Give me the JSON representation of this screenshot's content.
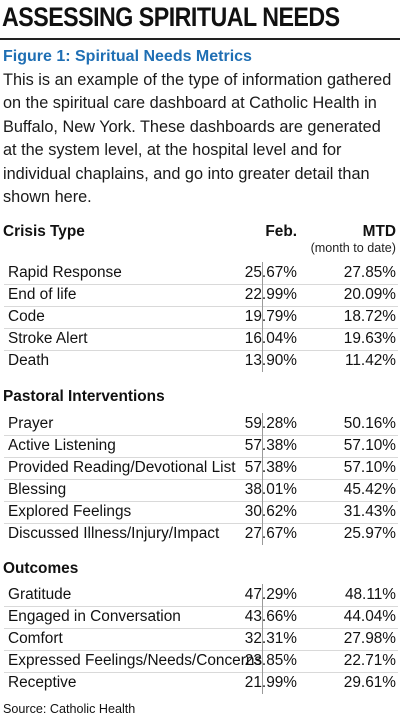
{
  "heading": "ASSESSING SPIRITUAL NEEDS",
  "figure_title": "Figure 1: Spiritual Needs Metrics",
  "description": "This is an example of the type of information gathered on the spiritual care dashboard at Catholic Health in Buffalo, New York. These dashboards are generated at the system level, at the hospital level and for individual chaplains, and go into greater detail than shown here.",
  "table": {
    "col_feb": "Feb.",
    "col_mtd": "MTD",
    "col_mtd_note": "(month to date)",
    "sections": [
      {
        "title": "Crisis Type",
        "rows": [
          {
            "label": "Rapid Response",
            "feb": "25.67%",
            "mtd": "27.85%"
          },
          {
            "label": "End of life",
            "feb": "22.99%",
            "mtd": "20.09%"
          },
          {
            "label": "Code",
            "feb": "19.79%",
            "mtd": "18.72%"
          },
          {
            "label": "Stroke Alert",
            "feb": "16.04%",
            "mtd": "19.63%"
          },
          {
            "label": "Death",
            "feb": "13.90%",
            "mtd": "11.42%"
          }
        ]
      },
      {
        "title": "Pastoral Interventions",
        "rows": [
          {
            "label": "Prayer",
            "feb": "59.28%",
            "mtd": "50.16%"
          },
          {
            "label": "Active Listening",
            "feb": "57.38%",
            "mtd": "57.10%"
          },
          {
            "label": "Provided Reading/Devotional List",
            "feb": "57.38%",
            "mtd": "57.10%"
          },
          {
            "label": "Blessing",
            "feb": "38.01%",
            "mtd": "45.42%"
          },
          {
            "label": "Explored Feelings",
            "feb": "30.62%",
            "mtd": "31.43%"
          },
          {
            "label": "Discussed Illness/Injury/Impact",
            "feb": "27.67%",
            "mtd": "25.97%"
          }
        ]
      },
      {
        "title": "Outcomes",
        "rows": [
          {
            "label": "Gratitude",
            "feb": "47.29%",
            "mtd": "48.11%"
          },
          {
            "label": "Engaged in Conversation",
            "feb": "43.66%",
            "mtd": "44.04%"
          },
          {
            "label": "Comfort",
            "feb": "32.31%",
            "mtd": "27.98%"
          },
          {
            "label": "Expressed Feelings/Needs/Concerns",
            "feb": "23.85%",
            "mtd": "22.71%"
          },
          {
            "label": "Receptive",
            "feb": "21.99%",
            "mtd": "29.61%"
          }
        ]
      }
    ]
  },
  "source": "Source: Catholic Health"
}
